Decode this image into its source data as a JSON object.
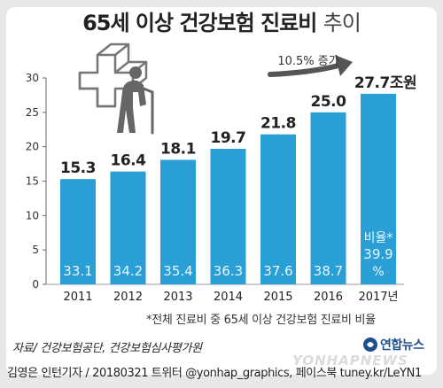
{
  "title_main": "65세 이상 건강보험 진료비",
  "title_sub": "추이",
  "note": "*전체 진료비 중 65세 이상 건강보험 진료비 비율",
  "source": "자료/ 건강보험공단, 건강보험심사평가원",
  "footer": "김영은 인턴기자 / 20180321   트위터 @yonhap_graphics, 페이스북 tuney.kr/LeYN1",
  "logo_text": "연합뉴스",
  "watermark": "YONHAPNEWS",
  "colors": {
    "bar": "#2a9fd6",
    "text": "#222222",
    "arrow": "#555555",
    "icon": "#666666",
    "label_inside": "#e8f6fd"
  },
  "icon": "elderly-person-icon",
  "chart_data": {
    "type": "bar",
    "categories": [
      "2011",
      "2012",
      "2013",
      "2014",
      "2015",
      "2016",
      "2017년"
    ],
    "values": [
      15.3,
      16.4,
      18.1,
      19.7,
      21.8,
      25.0,
      27.7
    ],
    "value_labels": [
      "15.3",
      "16.4",
      "18.1",
      "19.7",
      "21.8",
      "25.0",
      "27.7조원"
    ],
    "ratio_labels": [
      "33.1",
      "34.2",
      "35.4",
      "36.3",
      "37.6",
      "38.7",
      "39.9"
    ],
    "ratio_title": "비율*",
    "ratio_unit": "%",
    "yticks": [
      "0",
      "5",
      "10",
      "15",
      "20",
      "25",
      "30"
    ],
    "ylim": [
      0,
      30
    ],
    "growth_annotation": "10.5% 증가",
    "grid": false
  }
}
